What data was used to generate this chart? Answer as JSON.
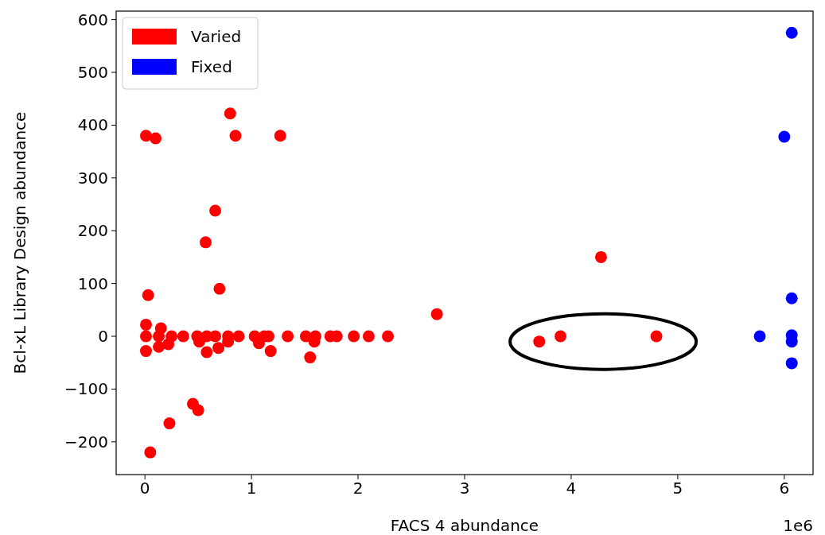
{
  "chart_data": {
    "type": "scatter",
    "xlabel": "FACS 4 abundance",
    "ylabel": "Bcl-xL Library Design abundance",
    "annotations": [
      "1e6"
    ],
    "xlim": [
      -0.27,
      6.27
    ],
    "ylim": [
      -262,
      616
    ],
    "xticks": [
      0,
      1,
      2,
      3,
      4,
      5,
      6
    ],
    "yticks": [
      {
        "value": -200,
        "label": "−200"
      },
      {
        "value": -100,
        "label": "−100"
      },
      0,
      100,
      200,
      300,
      400,
      500,
      600
    ],
    "grid": false,
    "legend": "top left",
    "marker": "circle",
    "series": [
      {
        "name": "Varied",
        "color": "#ff0000",
        "x": [
          0.01,
          0.1,
          0.8,
          0.85,
          1.27,
          0.66,
          0.57,
          0.7,
          0.03,
          2.74,
          4.28,
          3.7,
          3.9,
          4.8,
          1.55,
          1.18,
          0.01,
          0.01,
          0.15,
          0.45,
          0.5,
          0.23,
          0.05,
          0.01,
          0.13,
          0.25,
          0.36,
          0.49,
          0.58,
          0.66,
          0.78,
          0.88,
          1.03,
          1.12,
          1.16,
          1.34,
          1.51,
          1.6,
          1.74,
          1.8,
          1.96,
          2.1,
          2.28,
          0.13,
          0.22,
          0.58,
          0.69,
          0.51,
          0.78,
          1.07,
          1.59
        ],
        "values": [
          380,
          375,
          422,
          380,
          380,
          238,
          178,
          90,
          78,
          42,
          150,
          -10,
          0,
          0,
          -40,
          -28,
          -28,
          22,
          15,
          -128,
          -140,
          -165,
          -220,
          0,
          0,
          0,
          0,
          0,
          0,
          0,
          0,
          0,
          0,
          0,
          0,
          0,
          0,
          0,
          0,
          0,
          0,
          0,
          0,
          -20,
          -15,
          -30,
          -22,
          -10,
          -10,
          -13,
          -10
        ]
      },
      {
        "name": "Fixed",
        "color": "#0000ff",
        "x": [
          6.07,
          6.0,
          6.07,
          5.77,
          6.07,
          6.07,
          6.07
        ],
        "values": [
          575,
          378,
          72,
          0,
          2,
          -10,
          -51
        ]
      }
    ]
  }
}
